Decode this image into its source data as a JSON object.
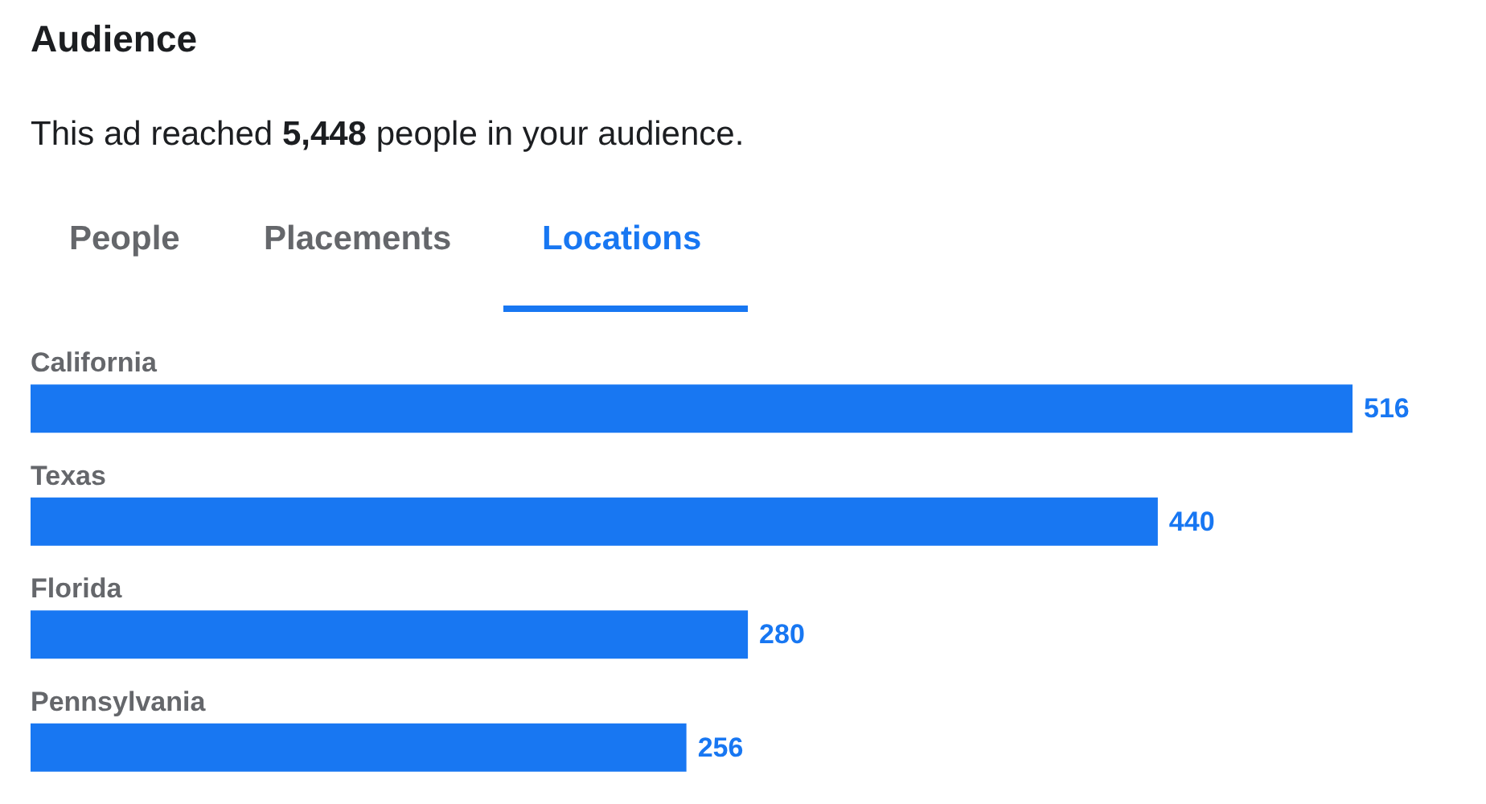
{
  "chart_data": {
    "type": "bar",
    "orientation": "horizontal",
    "title": "Audience",
    "subtitle": "This ad reached 5,448 people in your audience.",
    "annotations": [
      "People",
      "Placements",
      "Locations"
    ],
    "categories": [
      "California",
      "Texas",
      "Florida",
      "Pennsylvania"
    ],
    "values": [
      516,
      440,
      280,
      256
    ],
    "color": "#1877f2",
    "data_labels": true
  }
}
